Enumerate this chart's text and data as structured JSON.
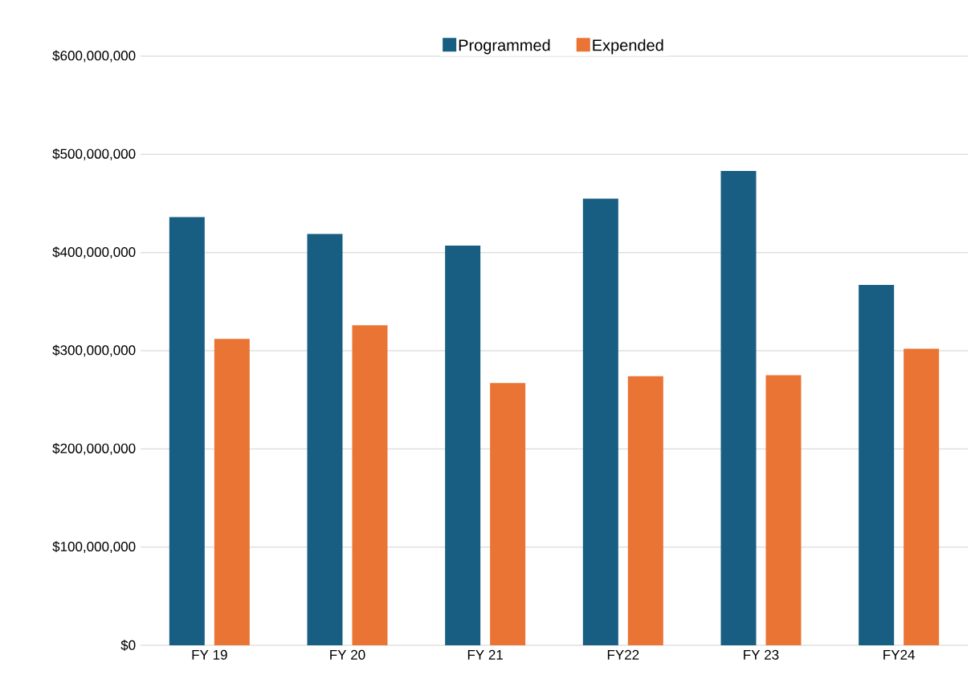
{
  "chart_data": {
    "type": "bar",
    "categories": [
      "FY 19",
      "FY 20",
      "FY 21",
      "FY22",
      "FY 23",
      "FY24"
    ],
    "series": [
      {
        "name": "Programmed",
        "color": "#175e82",
        "values": [
          436000000,
          419000000,
          407000000,
          455000000,
          483000000,
          367000000
        ]
      },
      {
        "name": "Expended",
        "color": "#e97434",
        "values": [
          312000000,
          326000000,
          267000000,
          274000000,
          275000000,
          302000000
        ]
      }
    ],
    "ylim": [
      0,
      600000000
    ],
    "yticks": [
      {
        "value": 0,
        "label": "$0"
      },
      {
        "value": 100000000,
        "label": "$100,000,000"
      },
      {
        "value": 200000000,
        "label": "$200,000,000"
      },
      {
        "value": 300000000,
        "label": "$300,000,000"
      },
      {
        "value": 400000000,
        "label": "$400,000,000"
      },
      {
        "value": 500000000,
        "label": "$500,000,000"
      },
      {
        "value": 600000000,
        "label": "$600,000,000"
      }
    ],
    "grid": "y",
    "legend": "top"
  }
}
